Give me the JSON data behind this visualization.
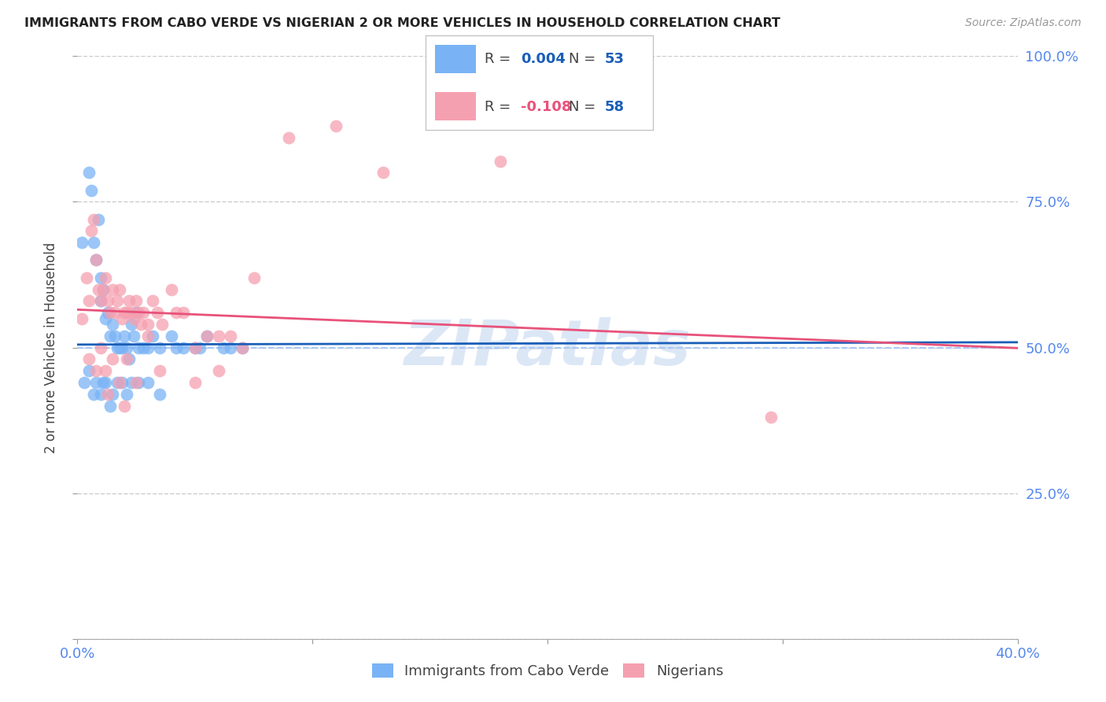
{
  "title": "IMMIGRANTS FROM CABO VERDE VS NIGERIAN 2 OR MORE VEHICLES IN HOUSEHOLD CORRELATION CHART",
  "source": "Source: ZipAtlas.com",
  "ylabel": "2 or more Vehicles in Household",
  "cabo_verde_R": 0.004,
  "cabo_verde_N": 53,
  "nigerian_R": -0.108,
  "nigerian_N": 58,
  "cabo_verde_color": "#7ab3f5",
  "nigerian_color": "#f5a0b0",
  "cabo_verde_line_color": "#1a5eb8",
  "nigerian_line_color": "#e8527a",
  "dashed_line_color": "#a8c8f8",
  "watermark_color": "#c5d8f0",
  "legend_R_color_cv": "#1a5eb8",
  "legend_R_color_ng": "#e8527a",
  "legend_N_color": "#1a5eb8",
  "background_color": "#ffffff",
  "x_min": 0.0,
  "x_max": 40.0,
  "y_min": 0.0,
  "y_max": 1.0,
  "cabo_verde_x": [
    0.2,
    0.5,
    0.6,
    0.7,
    0.8,
    0.9,
    1.0,
    1.0,
    1.1,
    1.2,
    1.3,
    1.4,
    1.5,
    1.6,
    1.7,
    1.8,
    1.9,
    2.0,
    2.1,
    2.2,
    2.3,
    2.4,
    2.5,
    2.6,
    2.8,
    3.0,
    3.2,
    3.5,
    4.0,
    4.5,
    5.0,
    5.5,
    6.5,
    0.3,
    0.5,
    0.7,
    0.8,
    1.0,
    1.1,
    1.2,
    1.4,
    1.5,
    1.7,
    1.9,
    2.1,
    2.3,
    2.6,
    3.0,
    3.5,
    4.2,
    5.2,
    6.2,
    7.0
  ],
  "cabo_verde_y": [
    0.68,
    0.8,
    0.77,
    0.68,
    0.65,
    0.72,
    0.62,
    0.58,
    0.6,
    0.55,
    0.56,
    0.52,
    0.54,
    0.52,
    0.5,
    0.5,
    0.5,
    0.52,
    0.5,
    0.48,
    0.54,
    0.52,
    0.56,
    0.5,
    0.5,
    0.5,
    0.52,
    0.5,
    0.52,
    0.5,
    0.5,
    0.52,
    0.5,
    0.44,
    0.46,
    0.42,
    0.44,
    0.42,
    0.44,
    0.44,
    0.4,
    0.42,
    0.44,
    0.44,
    0.42,
    0.44,
    0.44,
    0.44,
    0.42,
    0.5,
    0.5,
    0.5,
    0.5
  ],
  "nigerian_x": [
    0.2,
    0.4,
    0.5,
    0.6,
    0.7,
    0.8,
    0.9,
    1.0,
    1.1,
    1.2,
    1.3,
    1.4,
    1.5,
    1.6,
    1.7,
    1.8,
    1.9,
    2.0,
    2.1,
    2.2,
    2.3,
    2.4,
    2.5,
    2.6,
    2.7,
    2.8,
    3.0,
    3.2,
    3.4,
    3.6,
    4.0,
    4.5,
    5.0,
    5.5,
    6.0,
    6.5,
    7.0,
    0.5,
    0.8,
    1.0,
    1.2,
    1.5,
    1.8,
    2.1,
    2.5,
    3.0,
    3.5,
    4.2,
    5.0,
    6.0,
    7.5,
    9.0,
    11.0,
    13.0,
    18.0,
    29.5,
    1.3,
    2.0
  ],
  "nigerian_y": [
    0.55,
    0.62,
    0.58,
    0.7,
    0.72,
    0.65,
    0.6,
    0.58,
    0.6,
    0.62,
    0.58,
    0.56,
    0.6,
    0.56,
    0.58,
    0.6,
    0.55,
    0.56,
    0.56,
    0.58,
    0.56,
    0.55,
    0.58,
    0.56,
    0.54,
    0.56,
    0.54,
    0.58,
    0.56,
    0.54,
    0.6,
    0.56,
    0.5,
    0.52,
    0.46,
    0.52,
    0.5,
    0.48,
    0.46,
    0.5,
    0.46,
    0.48,
    0.44,
    0.48,
    0.44,
    0.52,
    0.46,
    0.56,
    0.44,
    0.52,
    0.62,
    0.86,
    0.88,
    0.8,
    0.82,
    0.38,
    0.42,
    0.4
  ]
}
